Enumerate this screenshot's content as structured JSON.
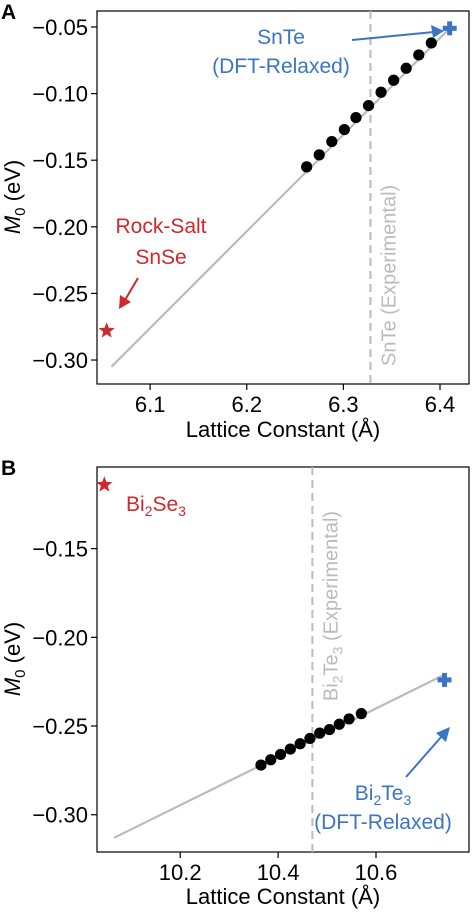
{
  "chart_data": [
    {
      "panel": "A",
      "type": "scatter",
      "xlabel": "Lattice Constant (Å)",
      "ylabel_main": "M",
      "ylabel_sub": "0",
      "ylabel_unit": " (eV)",
      "xlim": [
        6.045,
        6.43
      ],
      "ylim": [
        -0.318,
        -0.038
      ],
      "xticks": [
        6.1,
        6.2,
        6.3,
        6.4
      ],
      "xtick_labels": [
        "6.1",
        "6.2",
        "6.3",
        "6.4"
      ],
      "yticks": [
        -0.3,
        -0.25,
        -0.2,
        -0.15,
        -0.1,
        -0.05
      ],
      "ytick_labels": [
        "−0.30",
        "−0.25",
        "−0.20",
        "−0.15",
        "−0.10",
        "−0.05"
      ],
      "fit_line": {
        "x": [
          6.06,
          6.41
        ],
        "y": [
          -0.305,
          -0.051
        ],
        "color": "#bbbbbb"
      },
      "points": {
        "x": [
          6.262,
          6.275,
          6.288,
          6.301,
          6.313,
          6.326,
          6.339,
          6.352,
          6.365,
          6.378,
          6.391
        ],
        "y": [
          -0.155,
          -0.146,
          -0.136,
          -0.127,
          -0.118,
          -0.109,
          -0.099,
          -0.09,
          -0.081,
          -0.071,
          -0.062
        ],
        "color": "#000000"
      },
      "experimental_line": {
        "x": 6.328,
        "label": "SnTe (Experimental)",
        "color": "#bbbbbb"
      },
      "markers": [
        {
          "shape": "cross",
          "x": 6.41,
          "y": -0.051,
          "color": "#3a75c4",
          "label_lines": [
            "SnTe",
            "(DFT-Relaxed)"
          ]
        },
        {
          "shape": "star",
          "x": 6.055,
          "y": -0.278,
          "color": "#d0282c",
          "label_lines": [
            "Rock-Salt",
            "SnSe"
          ]
        }
      ],
      "grid": false
    },
    {
      "panel": "B",
      "type": "scatter",
      "xlabel": "Lattice Constant (Å)",
      "ylabel_main": "M",
      "ylabel_sub": "0",
      "ylabel_unit": " (eV)",
      "xlim": [
        10.03,
        10.79
      ],
      "ylim": [
        -0.321,
        -0.104
      ],
      "xticks": [
        10.2,
        10.4,
        10.6
      ],
      "xtick_labels": [
        "10.2",
        "10.4",
        "10.6"
      ],
      "yticks": [
        -0.3,
        -0.25,
        -0.2,
        -0.15
      ],
      "ytick_labels": [
        "−0.30",
        "−0.25",
        "−0.20",
        "−0.15"
      ],
      "fit_line": {
        "x": [
          10.065,
          10.74
        ],
        "y": [
          -0.313,
          -0.221
        ],
        "color": "#bbbbbb"
      },
      "points": {
        "x": [
          10.365,
          10.385,
          10.405,
          10.425,
          10.445,
          10.465,
          10.485,
          10.505,
          10.525,
          10.545,
          10.57
        ],
        "y": [
          -0.272,
          -0.269,
          -0.266,
          -0.263,
          -0.26,
          -0.257,
          -0.254,
          -0.252,
          -0.249,
          -0.246,
          -0.243
        ],
        "color": "#000000"
      },
      "experimental_line": {
        "x": 10.47,
        "label_main": "Bi",
        "label_sub1": "2",
        "label_mid": "Te",
        "label_sub2": "3",
        "label_tail": " (Experimental)",
        "color": "#bbbbbb"
      },
      "markers": [
        {
          "shape": "cross",
          "x": 10.74,
          "y": -0.224,
          "color": "#3a75c4",
          "label_parts": [
            "Bi",
            "2",
            "Te",
            "3"
          ],
          "label_line2": "(DFT-Relaxed)"
        },
        {
          "shape": "star",
          "x": 10.045,
          "y": -0.114,
          "color": "#d0282c",
          "label_parts": [
            "Bi",
            "2",
            "Se",
            "3"
          ]
        }
      ],
      "grid": false
    }
  ]
}
